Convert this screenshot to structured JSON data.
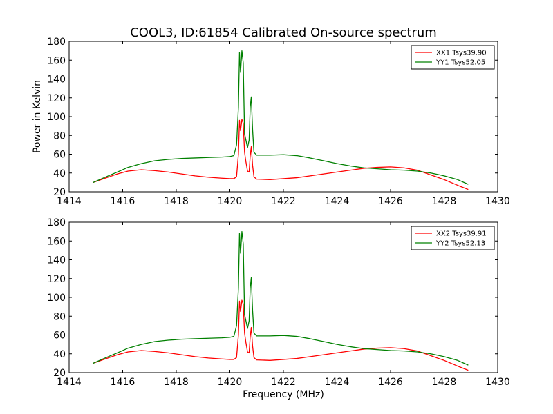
{
  "title": "COOL3, ID:61854 Calibrated On-source spectrum",
  "colors": {
    "xx": "#ff0000",
    "yy": "#008000"
  },
  "chart_data": [
    {
      "type": "line",
      "ylabel": "Power in Kelvin",
      "xlabel": "",
      "xlim": [
        1414,
        1430
      ],
      "ylim": [
        20,
        180
      ],
      "xticks": [
        "1414",
        "1416",
        "1418",
        "1420",
        "1422",
        "1424",
        "1426",
        "1428",
        "1430"
      ],
      "yticks": [
        "20",
        "40",
        "60",
        "80",
        "100",
        "120",
        "140",
        "160",
        "180"
      ],
      "legend_position": "top-right",
      "series": [
        {
          "name": "XX1 Tsys39.90",
          "color": "#ff0000",
          "x": [
            1414.9,
            1415.3,
            1415.8,
            1416.2,
            1416.7,
            1417.2,
            1417.7,
            1418.2,
            1418.7,
            1419.2,
            1419.7,
            1420.0,
            1420.15,
            1420.25,
            1420.32,
            1420.36,
            1420.4,
            1420.45,
            1420.5,
            1420.55,
            1420.6,
            1420.66,
            1420.72,
            1420.76,
            1420.8,
            1420.85,
            1420.9,
            1421.0,
            1421.5,
            1422.0,
            1422.5,
            1423.0,
            1423.5,
            1424.0,
            1424.5,
            1425.0,
            1425.5,
            1426.0,
            1426.5,
            1427.0,
            1427.5,
            1428.0,
            1428.5,
            1428.9
          ],
          "y": [
            30,
            34,
            39,
            42,
            43.5,
            42.5,
            41,
            39,
            37,
            35.5,
            34.5,
            34,
            34,
            36,
            60,
            96,
            85,
            97,
            93,
            62,
            52,
            42,
            41,
            58,
            68,
            48,
            36,
            33.5,
            33,
            34,
            35,
            37,
            39,
            41,
            43,
            45,
            46,
            46.5,
            45.5,
            43,
            38,
            33,
            27,
            22.5
          ]
        },
        {
          "name": "YY1 Tsys52.05",
          "color": "#008000",
          "x": [
            1414.9,
            1415.3,
            1415.8,
            1416.2,
            1416.7,
            1417.2,
            1417.7,
            1418.2,
            1418.7,
            1419.2,
            1419.7,
            1420.0,
            1420.15,
            1420.25,
            1420.32,
            1420.36,
            1420.4,
            1420.45,
            1420.5,
            1420.55,
            1420.6,
            1420.66,
            1420.72,
            1420.76,
            1420.8,
            1420.85,
            1420.9,
            1421.0,
            1421.5,
            1422.0,
            1422.5,
            1423.0,
            1423.5,
            1424.0,
            1424.5,
            1425.0,
            1425.5,
            1426.0,
            1426.5,
            1427.0,
            1427.5,
            1428.0,
            1428.5,
            1428.9
          ],
          "y": [
            30,
            35,
            41,
            46,
            50,
            53,
            54.5,
            55.5,
            56,
            56.5,
            57,
            57.5,
            58.5,
            70,
            110,
            168,
            147,
            170,
            157,
            82,
            75,
            67,
            75,
            110,
            121,
            86,
            62,
            59,
            59,
            59.5,
            58.5,
            56,
            53,
            50,
            47.5,
            45.5,
            44.5,
            43.5,
            43,
            42,
            40,
            37,
            33,
            28
          ]
        }
      ]
    },
    {
      "type": "line",
      "ylabel": "",
      "xlabel": "Frequency (MHz)",
      "xlim": [
        1414,
        1430
      ],
      "ylim": [
        20,
        180
      ],
      "xticks": [
        "1414",
        "1416",
        "1418",
        "1420",
        "1422",
        "1424",
        "1426",
        "1428",
        "1430"
      ],
      "yticks": [
        "20",
        "40",
        "60",
        "80",
        "100",
        "120",
        "140",
        "160",
        "180"
      ],
      "legend_position": "top-right",
      "series": [
        {
          "name": "XX2 Tsys39.91",
          "color": "#ff0000",
          "x": [
            1414.9,
            1415.3,
            1415.8,
            1416.2,
            1416.7,
            1417.2,
            1417.7,
            1418.2,
            1418.7,
            1419.2,
            1419.7,
            1420.0,
            1420.15,
            1420.25,
            1420.32,
            1420.36,
            1420.4,
            1420.45,
            1420.5,
            1420.55,
            1420.6,
            1420.66,
            1420.72,
            1420.76,
            1420.8,
            1420.85,
            1420.9,
            1421.0,
            1421.5,
            1422.0,
            1422.5,
            1423.0,
            1423.5,
            1424.0,
            1424.5,
            1425.0,
            1425.5,
            1426.0,
            1426.5,
            1427.0,
            1427.5,
            1428.0,
            1428.5,
            1428.9
          ],
          "y": [
            30,
            34,
            39,
            42,
            43.5,
            42.5,
            41,
            39,
            37,
            35.5,
            34.5,
            34,
            34,
            36,
            60,
            96,
            85,
            97,
            93,
            62,
            52,
            42,
            41,
            58,
            68,
            48,
            36,
            33.5,
            33,
            34,
            35,
            37,
            39,
            41,
            43,
            45,
            46,
            46.5,
            45.5,
            43,
            38,
            33,
            27,
            22.5
          ]
        },
        {
          "name": "YY2 Tsys52.13",
          "color": "#008000",
          "x": [
            1414.9,
            1415.3,
            1415.8,
            1416.2,
            1416.7,
            1417.2,
            1417.7,
            1418.2,
            1418.7,
            1419.2,
            1419.7,
            1420.0,
            1420.15,
            1420.25,
            1420.32,
            1420.36,
            1420.4,
            1420.45,
            1420.5,
            1420.55,
            1420.6,
            1420.66,
            1420.72,
            1420.76,
            1420.8,
            1420.85,
            1420.9,
            1421.0,
            1421.5,
            1422.0,
            1422.5,
            1423.0,
            1423.5,
            1424.0,
            1424.5,
            1425.0,
            1425.5,
            1426.0,
            1426.5,
            1427.0,
            1427.5,
            1428.0,
            1428.5,
            1428.9
          ],
          "y": [
            30,
            35,
            41,
            46,
            50,
            53,
            54.5,
            55.5,
            56,
            56.5,
            57,
            57.5,
            58.5,
            70,
            110,
            168,
            147,
            170,
            157,
            82,
            75,
            67,
            75,
            110,
            121,
            86,
            62,
            59,
            59,
            59.5,
            58.5,
            56,
            53,
            50,
            47.5,
            45.5,
            44.5,
            43.5,
            43,
            42,
            40,
            37,
            33,
            28
          ]
        }
      ]
    }
  ]
}
